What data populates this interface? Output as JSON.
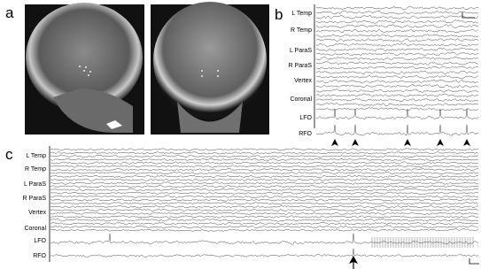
{
  "panels": [
    {
      "label": "a"
    },
    {
      "label": "b",
      "channels": [
        "L Temp",
        "R Temp",
        "L ParaS",
        "R ParaS",
        "Vertex",
        "Coronal",
        "LFO",
        "RFO"
      ]
    },
    {
      "label": "c",
      "channels": [
        "L Temp",
        "R Temp",
        "L ParaS",
        "R ParaS",
        "Vertex",
        "Coronal",
        "LFO",
        "RFO"
      ]
    }
  ]
}
